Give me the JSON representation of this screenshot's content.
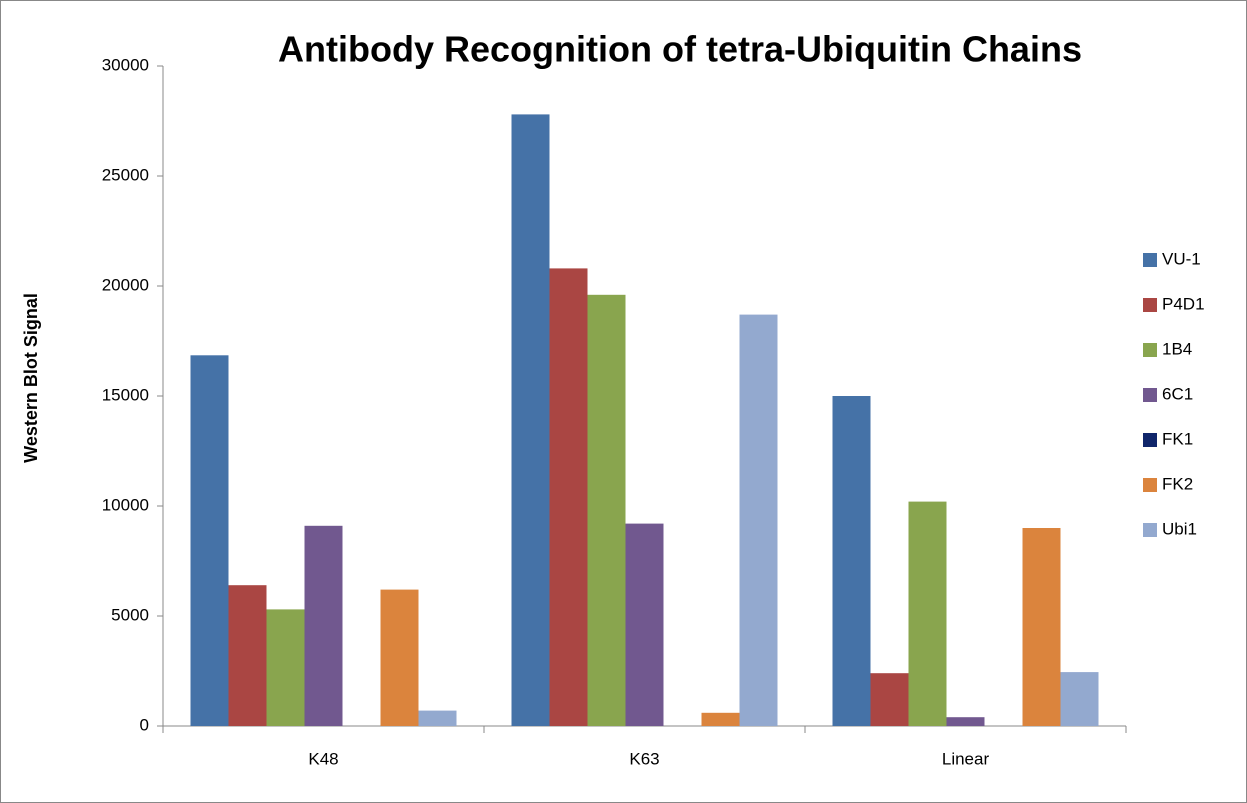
{
  "chart_data": {
    "type": "bar",
    "title": "Antibody Recognition of tetra-Ubiquitin Chains",
    "y_label": "Western Blot Signal",
    "categories": [
      "K48",
      "K63",
      "Linear"
    ],
    "series": [
      {
        "name": "VU-1",
        "color": "#4572a7",
        "values": [
          16850,
          27800,
          15000
        ]
      },
      {
        "name": "P4D1",
        "color": "#aa4643",
        "values": [
          6400,
          20800,
          2400
        ]
      },
      {
        "name": "1B4",
        "color": "#89a54e",
        "values": [
          5300,
          19600,
          10200
        ]
      },
      {
        "name": "6C1",
        "color": "#71588f",
        "values": [
          9100,
          9200,
          400
        ]
      },
      {
        "name": "FK1",
        "color": "#10266b",
        "values": [
          0,
          0,
          0
        ]
      },
      {
        "name": "FK2",
        "color": "#db843d",
        "values": [
          6200,
          600,
          9000
        ]
      },
      {
        "name": "Ubi1",
        "color": "#93a9cf",
        "values": [
          700,
          18700,
          2450
        ]
      }
    ],
    "ylim": [
      0,
      30000
    ],
    "yticks": [
      0,
      5000,
      10000,
      15000,
      20000,
      25000,
      30000
    ],
    "grid": false,
    "legend": "right"
  }
}
